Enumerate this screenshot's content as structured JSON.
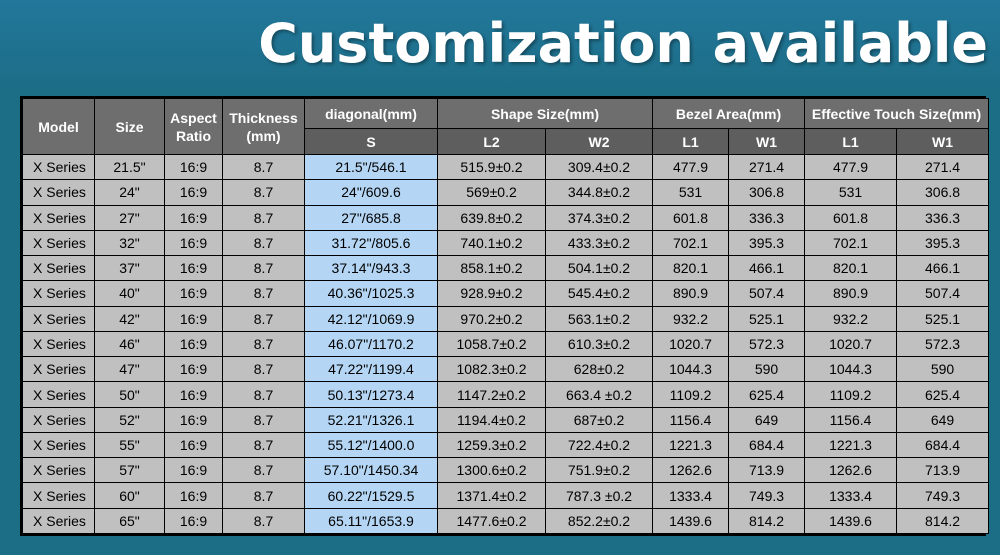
{
  "headline": "Customization available",
  "headers": {
    "model": "Model",
    "size": "Size",
    "aspect": "Aspect Ratio",
    "thickness": "Thickness (mm)",
    "diagonal": "diagonal(mm)",
    "shape": "Shape Size(mm)",
    "bezel": "Bezel Area(mm)",
    "touch": "Effective Touch Size(mm)",
    "sub": [
      "S",
      "L2",
      "W2",
      "L1",
      "W1",
      "L1",
      "W1"
    ]
  },
  "rows": [
    [
      "X Series",
      "21.5\"",
      "16:9",
      "8.7",
      "21.5\"/546.1",
      "515.9±0.2",
      "309.4±0.2",
      "477.9",
      "271.4",
      "477.9",
      "271.4"
    ],
    [
      "X Series",
      "24\"",
      "16:9",
      "8.7",
      "24\"/609.6",
      "569±0.2",
      "344.8±0.2",
      "531",
      "306.8",
      "531",
      "306.8"
    ],
    [
      "X Series",
      "27\"",
      "16:9",
      "8.7",
      "27\"/685.8",
      "639.8±0.2",
      "374.3±0.2",
      "601.8",
      "336.3",
      "601.8",
      "336.3"
    ],
    [
      "X Series",
      "32\"",
      "16:9",
      "8.7",
      "31.72\"/805.6",
      "740.1±0.2",
      "433.3±0.2",
      "702.1",
      "395.3",
      "702.1",
      "395.3"
    ],
    [
      "X Series",
      "37\"",
      "16:9",
      "8.7",
      "37.14\"/943.3",
      "858.1±0.2",
      "504.1±0.2",
      "820.1",
      "466.1",
      "820.1",
      "466.1"
    ],
    [
      "X Series",
      "40\"",
      "16:9",
      "8.7",
      "40.36\"/1025.3",
      "928.9±0.2",
      "545.4±0.2",
      "890.9",
      "507.4",
      "890.9",
      "507.4"
    ],
    [
      "X Series",
      "42\"",
      "16:9",
      "8.7",
      "42.12\"/1069.9",
      "970.2±0.2",
      "563.1±0.2",
      "932.2",
      "525.1",
      "932.2",
      "525.1"
    ],
    [
      "X Series",
      "46\"",
      "16:9",
      "8.7",
      "46.07\"/1170.2",
      "1058.7±0.2",
      "610.3±0.2",
      "1020.7",
      "572.3",
      "1020.7",
      "572.3"
    ],
    [
      "X Series",
      "47\"",
      "16:9",
      "8.7",
      "47.22\"/1199.4",
      "1082.3±0.2",
      "628±0.2",
      "1044.3",
      "590",
      "1044.3",
      "590"
    ],
    [
      "X Series",
      "50\"",
      "16:9",
      "8.7",
      "50.13\"/1273.4",
      "1147.2±0.2",
      "663.4 ±0.2",
      "1109.2",
      "625.4",
      "1109.2",
      "625.4"
    ],
    [
      "X Series",
      "52\"",
      "16:9",
      "8.7",
      "52.21\"/1326.1",
      "1194.4±0.2",
      "687±0.2",
      "1156.4",
      "649",
      "1156.4",
      "649"
    ],
    [
      "X Series",
      "55\"",
      "16:9",
      "8.7",
      "55.12\"/1400.0",
      "1259.3±0.2",
      "722.4±0.2",
      "1221.3",
      "684.4",
      "1221.3",
      "684.4"
    ],
    [
      "X Series",
      "57\"",
      "16:9",
      "8.7",
      "57.10\"/1450.34",
      "1300.6±0.2",
      "751.9±0.2",
      "1262.6",
      "713.9",
      "1262.6",
      "713.9"
    ],
    [
      "X Series",
      "60\"",
      "16:9",
      "8.7",
      "60.22\"/1529.5",
      "1371.4±0.2",
      "787.3 ±0.2",
      "1333.4",
      "749.3",
      "1333.4",
      "749.3"
    ],
    [
      "X Series",
      "65\"",
      "16:9",
      "8.7",
      "65.11\"/1653.9",
      "1477.6±0.2",
      "852.2±0.2",
      "1439.6",
      "814.2",
      "1439.6",
      "814.2"
    ]
  ],
  "colors": {
    "background": "#1c6d86",
    "header": "#6e6e6e",
    "cell": "#c0c0c0",
    "cell_highlight": "#b4d6f4"
  }
}
